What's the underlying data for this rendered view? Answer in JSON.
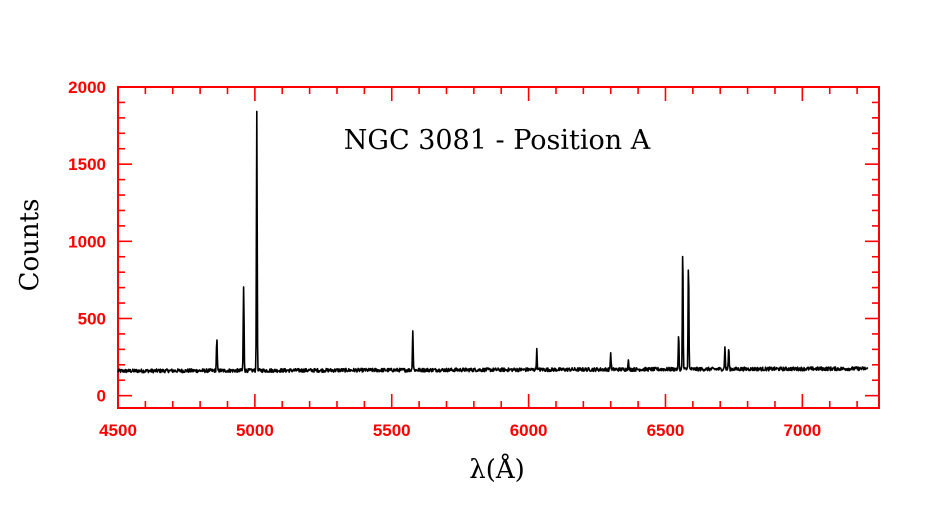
{
  "chart_data": {
    "type": "line",
    "title": "NGC 3081 - Position A",
    "xlabel": "λ(Å)",
    "ylabel": "Counts",
    "xlim": [
      4500,
      7280
    ],
    "ylim": [
      -80,
      2000
    ],
    "x_ticks": [
      4500,
      5000,
      5500,
      6000,
      6500,
      7000
    ],
    "y_ticks": [
      0,
      500,
      1000,
      1500,
      2000
    ],
    "x_tick_labels": [
      "4500",
      "5000",
      "5500",
      "6000",
      "6500",
      "7000"
    ],
    "y_tick_labels": [
      "0",
      "500",
      "1000",
      "1500",
      "2000"
    ],
    "x_minor_step": 100,
    "y_minor_step": 100,
    "grid": false,
    "axis_color": "#ff0000",
    "line_color": "#000000",
    "continuum": {
      "x_start": 4500,
      "x_end": 7240,
      "level_start": 160,
      "level_end": 175,
      "noise": 12
    },
    "series": [
      {
        "lines": [
          {
            "x": 4861,
            "peak": 365
          },
          {
            "x": 4959,
            "peak": 700
          },
          {
            "x": 5007,
            "peak": 1830
          },
          {
            "x": 5577,
            "peak": 420
          },
          {
            "x": 6030,
            "peak": 295
          },
          {
            "x": 6300,
            "peak": 275
          },
          {
            "x": 6364,
            "peak": 230
          },
          {
            "x": 6548,
            "peak": 390
          },
          {
            "x": 6563,
            "peak": 945
          },
          {
            "x": 6584,
            "peak": 850
          },
          {
            "x": 6717,
            "peak": 310
          },
          {
            "x": 6731,
            "peak": 310
          }
        ]
      }
    ]
  }
}
